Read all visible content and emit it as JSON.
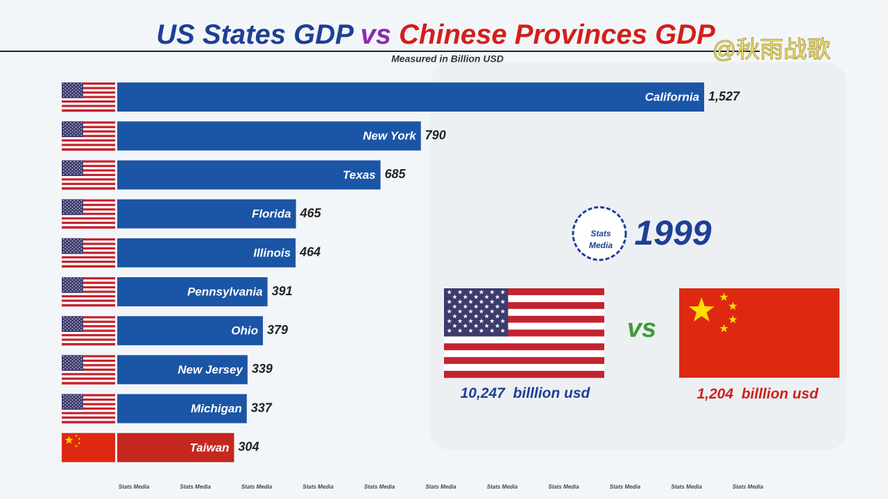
{
  "chart_data": {
    "type": "bar",
    "orientation": "horizontal",
    "title_parts": [
      "US States GDP",
      "vs",
      "Chinese Provinces GDP"
    ],
    "title_colors": [
      "#1f3f95",
      "#8b2bb0",
      "#d21f1b"
    ],
    "subtitle": "Measured in Billion USD",
    "categories": [
      "California",
      "New York",
      "Texas",
      "Florida",
      "Illinois",
      "Pennsylvania",
      "Ohio",
      "New Jersey",
      "Michigan",
      "Taiwan"
    ],
    "values": [
      1527,
      790,
      685,
      465,
      464,
      391,
      379,
      339,
      337,
      304
    ],
    "value_labels": [
      "1,527",
      "790",
      "685",
      "465",
      "464",
      "391",
      "379",
      "339",
      "337",
      "304"
    ],
    "colors": [
      "#1b55a6",
      "#1b55a6",
      "#1b55a6",
      "#1b55a6",
      "#1b55a6",
      "#1b55a6",
      "#1b55a6",
      "#1b55a6",
      "#1b55a6",
      "#c4281f"
    ],
    "year": 1999,
    "logo": [
      "Stats",
      "Media"
    ],
    "vs": "vs",
    "totals": [
      {
        "label": "10,247",
        "unit": "billlion usd",
        "color": "#1f3f95"
      },
      {
        "label": "1,204",
        "unit": "billlion usd",
        "color": "#d21f1b"
      }
    ],
    "watermark": "@秋雨战歌",
    "footer": [
      "Stats Media",
      "Stats Media",
      "Stats Media",
      "Stats Media",
      "Stats Media",
      "Stats Media",
      "Stats Media",
      "Stats Media",
      "Stats Media",
      "Stats Media",
      "Stats Media"
    ]
  }
}
